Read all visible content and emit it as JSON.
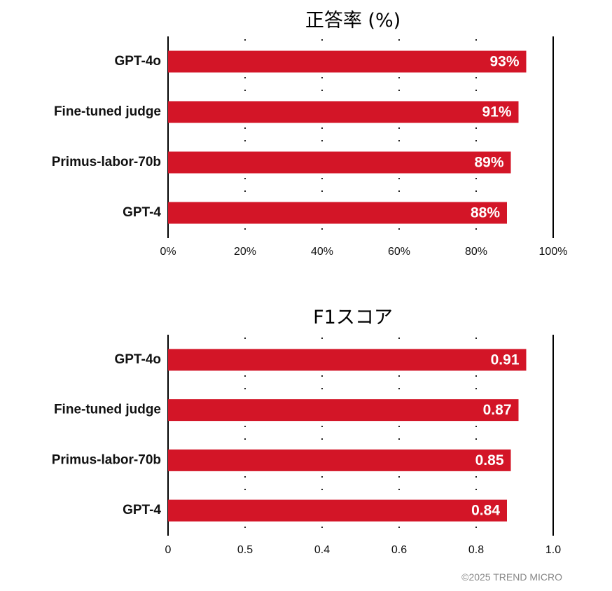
{
  "chart_data": [
    {
      "type": "bar",
      "orientation": "horizontal",
      "title": "正答率 (%)",
      "categories": [
        "GPT-4o",
        "Fine-tuned judge",
        "Primus-labor-70b",
        "GPT-4"
      ],
      "values": [
        93,
        91,
        89,
        88
      ],
      "value_labels": [
        "93%",
        "91%",
        "89%",
        "88%"
      ],
      "xlim": [
        0,
        100
      ],
      "xticks": [
        "0%",
        "20%",
        "40%",
        "60%",
        "80%",
        "100%"
      ],
      "grid": "dotted vertical",
      "bar_color": "#D31527"
    },
    {
      "type": "bar",
      "orientation": "horizontal",
      "title": "F1スコア",
      "categories": [
        "GPT-4o",
        "Fine-tuned judge",
        "Primus-labor-70b",
        "GPT-4"
      ],
      "values": [
        0.91,
        0.87,
        0.85,
        0.84
      ],
      "value_labels": [
        "0.91",
        "0.87",
        "0.85",
        "0.84"
      ],
      "bar_lengths_relative": [
        0.93,
        0.91,
        0.89,
        0.88
      ],
      "xticks": [
        "0",
        "0.5",
        "0.4",
        "0.6",
        "0.8",
        "1.0"
      ],
      "grid": "dotted vertical",
      "bar_color": "#D31527"
    }
  ],
  "footer": {
    "credit": "©2025 TREND MICRO"
  }
}
